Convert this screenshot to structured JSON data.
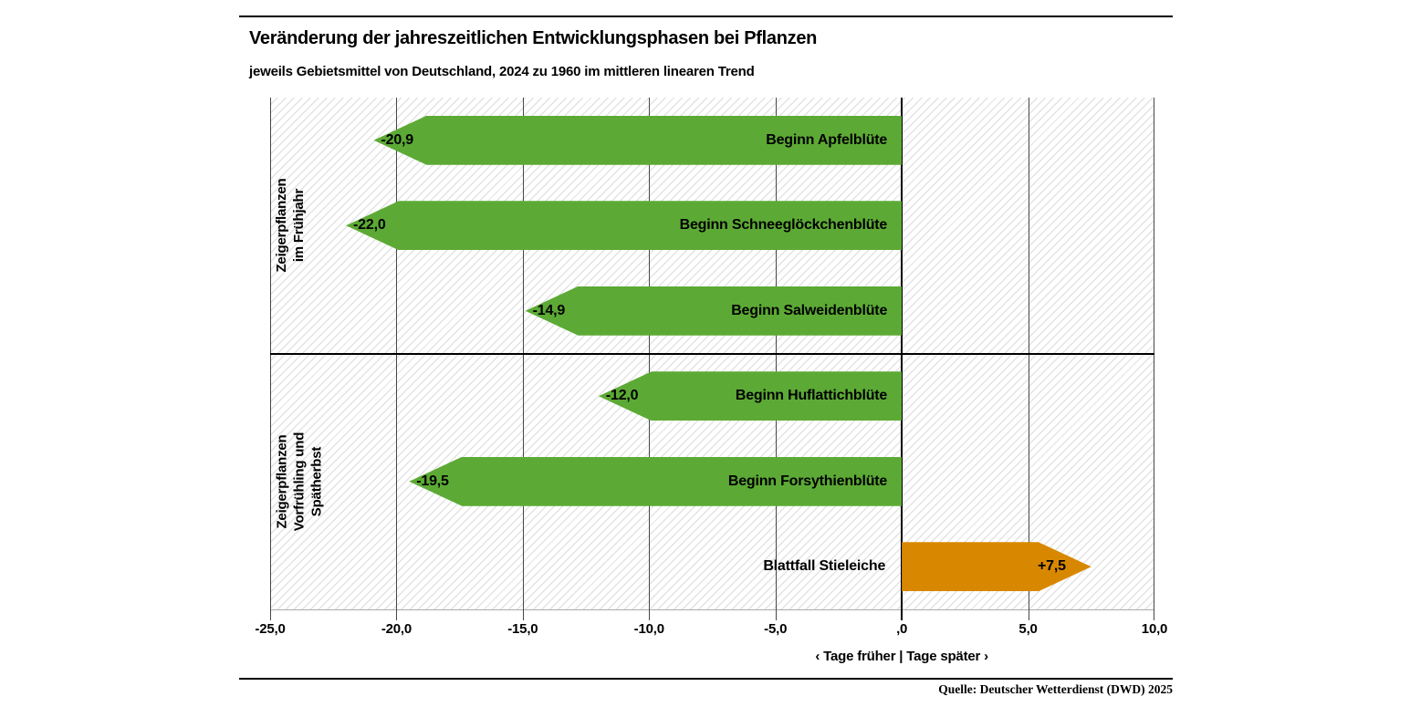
{
  "header": {
    "title": "Veränderung der jahreszeitlichen Entwicklungsphasen bei Pflanzen",
    "subtitle": "jeweils Gebietsmittel von Deutschland, 2024 zu 1960 im mittleren linearen Trend"
  },
  "footer": {
    "source": "Quelle: Deutscher Wetterdienst (DWD) 2025"
  },
  "chart_data": {
    "type": "bar",
    "orientation": "horizontal",
    "title": "Veränderung der jahreszeitlichen Entwicklungsphasen bei Pflanzen",
    "subtitle": "jeweils Gebietsmittel von Deutschland, 2024 zu 1960 im mittleren linearen Trend",
    "xlabel": "‹ Tage früher | Tage später ›",
    "xlim": [
      -25,
      10
    ],
    "xtick_values": [
      -25,
      -20,
      -15,
      -10,
      -5,
      0,
      5,
      10
    ],
    "xtick_labels": [
      "-25,0",
      "-20,0",
      "-15,0",
      "-10,0",
      "-5,0",
      ",0",
      "5,0",
      "10,0"
    ],
    "grid": true,
    "background_pattern": "diagonal-hatch",
    "bar_colors": {
      "negative": "#5caa35",
      "positive": "#d88800"
    },
    "groups": [
      {
        "label": "Zeigerpflanzen im Frühjahr",
        "label_lines": [
          "Zeigerpflanzen",
          "im Frühjahr"
        ],
        "bars": [
          {
            "name": "Beginn Apfelblüte",
            "value": -20.9,
            "value_label": "-20,9"
          },
          {
            "name": "Beginn Schneeglöckchenblüte",
            "value": -22.0,
            "value_label": "-22,0"
          },
          {
            "name": "Beginn Salweidenblüte",
            "value": -14.9,
            "value_label": "-14,9"
          }
        ]
      },
      {
        "label": "Zeigerpflanzen Vorfrühling und Spätherbst",
        "label_lines": [
          "Zeigerpflanzen",
          "Vorfrühling und",
          "Spätherbst"
        ],
        "bars": [
          {
            "name": "Beginn Huflattichblüte",
            "value": -12.0,
            "value_label": "-12,0"
          },
          {
            "name": "Beginn Forsythienblüte",
            "value": -19.5,
            "value_label": "-19,5"
          },
          {
            "name": "Blattfall Stieleiche",
            "value": 7.5,
            "value_label": "+7,5"
          }
        ]
      }
    ]
  }
}
